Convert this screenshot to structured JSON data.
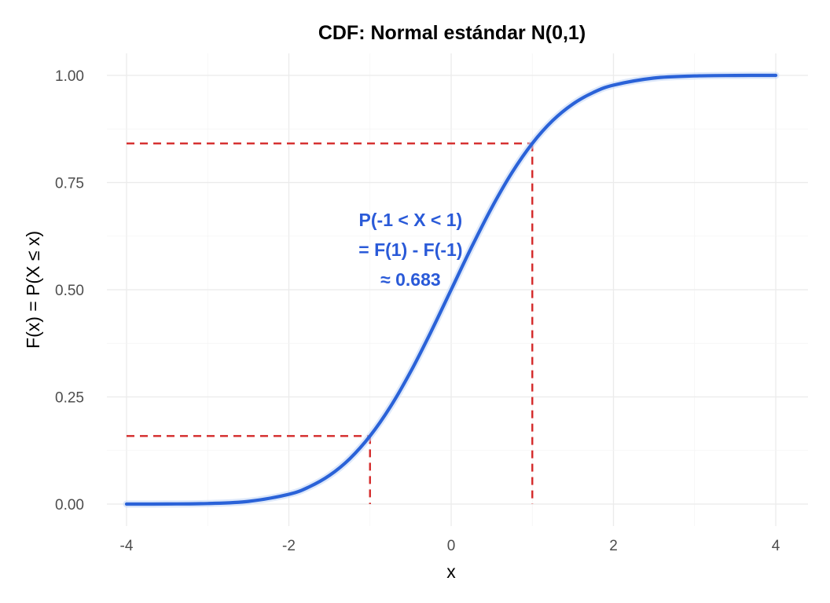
{
  "chart_data": {
    "type": "line",
    "title": "CDF: Normal estándar N(0,1)",
    "xlabel": "x",
    "ylabel": "F(x) = P(X ≤ x)",
    "xlim": [
      -4,
      4
    ],
    "ylim": [
      0,
      1
    ],
    "x_ticks": [
      "-4",
      "-2",
      "0",
      "2",
      "4"
    ],
    "y_ticks": [
      "0.00",
      "0.25",
      "0.50",
      "0.75",
      "1.00"
    ],
    "grid": true,
    "series": [
      {
        "color": "#2a62d8",
        "x": [
          -4,
          -3.5,
          -3,
          -2.5,
          -2,
          -1.75,
          -1.5,
          -1.25,
          -1,
          -0.75,
          -0.5,
          -0.25,
          0,
          0.25,
          0.5,
          0.75,
          1,
          1.25,
          1.5,
          1.75,
          2,
          2.5,
          3,
          3.5,
          4
        ],
        "y": [
          0.0,
          0.0002,
          0.0013,
          0.0062,
          0.0228,
          0.0401,
          0.0668,
          0.1056,
          0.1587,
          0.2266,
          0.3085,
          0.4013,
          0.5,
          0.5987,
          0.6915,
          0.7734,
          0.8413,
          0.8944,
          0.9332,
          0.9599,
          0.9772,
          0.9938,
          0.9987,
          0.9998,
          1.0
        ]
      }
    ],
    "reference_lines": {
      "color": "#d42a2a",
      "points": [
        {
          "x": -1,
          "y": 0.1587
        },
        {
          "x": 1,
          "y": 0.8413
        }
      ]
    },
    "annotation": {
      "color": "#2a5ad8",
      "x": -0.5,
      "y": 0.57,
      "lines": [
        "P(-1 < X < 1)",
        "= F(1) - F(-1)",
        "≈ 0.683"
      ]
    }
  }
}
